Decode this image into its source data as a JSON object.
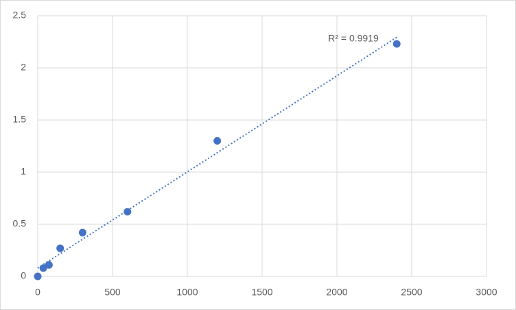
{
  "chart_data": {
    "type": "scatter",
    "x": [
      0,
      37.5,
      75,
      150,
      300,
      600,
      1200,
      2400
    ],
    "series": [
      {
        "color": "#4472c4",
        "values": [
          0,
          0.08,
          0.11,
          0.27,
          0.42,
          0.62,
          1.3,
          2.23
        ]
      }
    ],
    "xlim": [
      0,
      3000
    ],
    "xticks": [
      0,
      500,
      1000,
      1500,
      2000,
      2500,
      3000
    ],
    "ylim": [
      0,
      2.5
    ],
    "yticks": [
      0,
      0.5,
      1,
      1.5,
      2,
      2.5
    ],
    "grid": true,
    "trendline": "linear",
    "annotation": "R² = 0.9919"
  }
}
